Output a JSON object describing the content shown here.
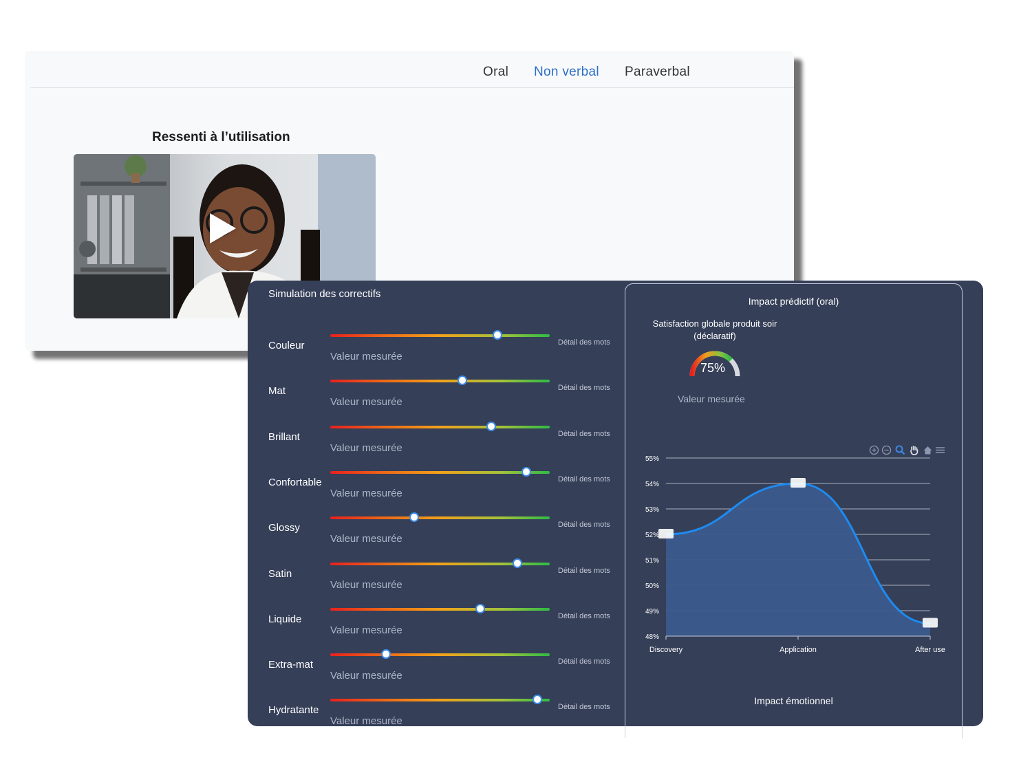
{
  "tabs": [
    {
      "label": "Oral",
      "active": false
    },
    {
      "label": "Non verbal",
      "active": true
    },
    {
      "label": "Paraverbal",
      "active": false
    }
  ],
  "video_section": {
    "title": "Ressenti à l’utilisation"
  },
  "simulation": {
    "title": "Simulation des correctifs",
    "detail_label": "Détail des mots",
    "measured_label": "Valeur mesurée",
    "rows": [
      {
        "label": "Couleur",
        "level": 0.76
      },
      {
        "label": "Mat",
        "level": 0.6
      },
      {
        "label": "Brillant",
        "level": 0.73
      },
      {
        "label": "Confortable",
        "level": 0.89
      },
      {
        "label": "Glossy",
        "level": 0.38
      },
      {
        "label": "Satin",
        "level": 0.85
      },
      {
        "label": "Liquide",
        "level": 0.68
      },
      {
        "label": "Extra-mat",
        "level": 0.25
      },
      {
        "label": "Hydratante",
        "level": 0.94
      }
    ]
  },
  "impact": {
    "title": "Impact prédictif (oral)",
    "satisfaction_line1": "Satisfaction globale produit soir",
    "satisfaction_line2": "(déclaratif)",
    "gauge_value": "75%",
    "gauge_level": 0.75,
    "measured_label": "Valeur mesurée",
    "toolbar_icons": [
      "zoom-in-icon",
      "zoom-out-icon",
      "magnifier-icon",
      "pan-hand-icon",
      "home-icon",
      "menu-icon"
    ],
    "emotion_title": "Impact émotionnel"
  },
  "colors": {
    "panel_bg": "#353f58",
    "active_tab": "#2d6fc6",
    "series_line": "#1e8bf0",
    "area_fill": "#3b5a8c"
  },
  "chart_data": {
    "type": "area",
    "categories": [
      "Discovery",
      "Application",
      "After use"
    ],
    "values": [
      52,
      54,
      48.5
    ],
    "y_ticks": [
      "55%",
      "54%",
      "53%",
      "52%",
      "51%",
      "50%",
      "49%",
      "48%"
    ],
    "ylim": [
      48,
      55
    ],
    "grid": true,
    "title": "",
    "xlabel": "",
    "ylabel": ""
  }
}
